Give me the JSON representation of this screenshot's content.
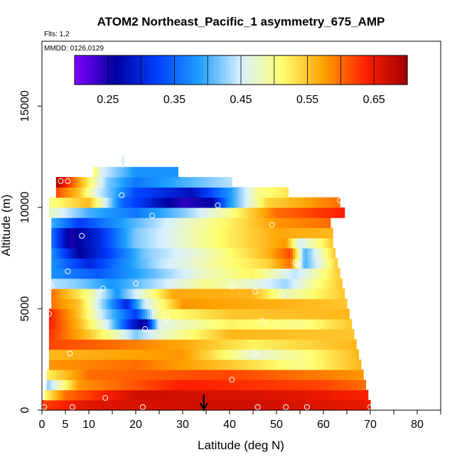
{
  "chart_data": {
    "type": "heatmap",
    "title": "ATOM2 Northeast_Pacific_1 asymmetry_675_AMP",
    "flights_label": "Flts: 1,2",
    "dates_label": "MMDD: 0126,0129",
    "xlabel": "Latitude (deg N)",
    "ylabel": "Altitude (m)",
    "xlim": [
      0,
      85
    ],
    "ylim": [
      0,
      18200
    ],
    "x_ticks": [
      0,
      5,
      10,
      20,
      30,
      40,
      50,
      60,
      70,
      80
    ],
    "y_ticks": [
      0,
      5000,
      10000,
      15000
    ],
    "colorbar": {
      "range": [
        0.2,
        0.7
      ],
      "ticks": [
        0.25,
        0.35,
        0.45,
        0.55,
        0.65
      ],
      "colors": [
        "#7f00ff",
        "#0000a0",
        "#0040ff",
        "#1ea0ff",
        "#d8f0ff",
        "#ffff70",
        "#ffa000",
        "#ff2000",
        "#a00000"
      ]
    },
    "arrow_latitude": 34.5,
    "altitude_layers": [
      {
        "y0": 0,
        "y1": 500,
        "lat0": 0,
        "lat1": 70,
        "knots": [
          [
            0,
            0.62
          ],
          [
            10,
            0.66
          ],
          [
            40,
            0.67
          ],
          [
            60,
            0.66
          ],
          [
            70,
            0.65
          ]
        ]
      },
      {
        "y0": 500,
        "y1": 1000,
        "lat0": 0.5,
        "lat1": 69.5,
        "knots": [
          [
            0,
            0.5
          ],
          [
            5,
            0.6
          ],
          [
            20,
            0.67
          ],
          [
            50,
            0.66
          ],
          [
            69.5,
            0.64
          ]
        ]
      },
      {
        "y0": 1000,
        "y1": 1500,
        "lat0": 1,
        "lat1": 69,
        "knots": [
          [
            1,
            0.42
          ],
          [
            8,
            0.58
          ],
          [
            30,
            0.64
          ],
          [
            60,
            0.62
          ],
          [
            69,
            0.6
          ]
        ]
      },
      {
        "y0": 1500,
        "y1": 2000,
        "lat0": 1,
        "lat1": 68.5,
        "knots": [
          [
            1,
            0.52
          ],
          [
            10,
            0.6
          ],
          [
            40,
            0.62
          ],
          [
            68.5,
            0.58
          ]
        ]
      },
      {
        "y0": 2000,
        "y1": 2500,
        "lat0": 1.5,
        "lat1": 68,
        "knots": [
          [
            1.5,
            0.58
          ],
          [
            20,
            0.6
          ],
          [
            40,
            0.55
          ],
          [
            55,
            0.5
          ],
          [
            68,
            0.56
          ]
        ]
      },
      {
        "y0": 2500,
        "y1": 3000,
        "lat0": 1.5,
        "lat1": 67.5,
        "knots": [
          [
            1.5,
            0.56
          ],
          [
            30,
            0.58
          ],
          [
            45,
            0.47
          ],
          [
            55,
            0.5
          ],
          [
            67.5,
            0.56
          ]
        ]
      },
      {
        "y0": 3000,
        "y1": 3500,
        "lat0": 1.5,
        "lat1": 67,
        "knots": [
          [
            1.5,
            0.62
          ],
          [
            15,
            0.6
          ],
          [
            30,
            0.57
          ],
          [
            45,
            0.52
          ],
          [
            67,
            0.56
          ]
        ]
      },
      {
        "y0": 3500,
        "y1": 4000,
        "lat0": 1.5,
        "lat1": 66.5,
        "knots": [
          [
            1.5,
            0.63
          ],
          [
            10,
            0.55
          ],
          [
            16,
            0.48
          ],
          [
            20,
            0.42
          ],
          [
            25,
            0.47
          ],
          [
            40,
            0.56
          ],
          [
            66.5,
            0.55
          ]
        ]
      },
      {
        "y0": 4000,
        "y1": 4500,
        "lat0": 1.5,
        "lat1": 66,
        "knots": [
          [
            1.5,
            0.64
          ],
          [
            8,
            0.56
          ],
          [
            14,
            0.45
          ],
          [
            19,
            0.3
          ],
          [
            22,
            0.25
          ],
          [
            25,
            0.46
          ],
          [
            40,
            0.52
          ],
          [
            55,
            0.5
          ],
          [
            66,
            0.55
          ]
        ]
      },
      {
        "y0": 4500,
        "y1": 5000,
        "lat0": 1.5,
        "lat1": 65.5,
        "knots": [
          [
            1.5,
            0.64
          ],
          [
            8,
            0.55
          ],
          [
            14,
            0.42
          ],
          [
            20,
            0.32
          ],
          [
            25,
            0.5
          ],
          [
            40,
            0.55
          ],
          [
            66,
            0.56
          ]
        ]
      },
      {
        "y0": 5000,
        "y1": 5500,
        "lat0": 2,
        "lat1": 65,
        "knots": [
          [
            2,
            0.6
          ],
          [
            8,
            0.55
          ],
          [
            14,
            0.4
          ],
          [
            18,
            0.3
          ],
          [
            22,
            0.45
          ],
          [
            30,
            0.58
          ],
          [
            55,
            0.56
          ],
          [
            65,
            0.55
          ]
        ]
      },
      {
        "y0": 5500,
        "y1": 6000,
        "lat0": 2,
        "lat1": 64.5,
        "knots": [
          [
            2,
            0.6
          ],
          [
            10,
            0.5
          ],
          [
            16,
            0.38
          ],
          [
            20,
            0.45
          ],
          [
            28,
            0.57
          ],
          [
            45,
            0.56
          ],
          [
            52,
            0.48
          ],
          [
            64.5,
            0.55
          ]
        ]
      },
      {
        "y0": 6000,
        "y1": 6500,
        "lat0": 2,
        "lat1": 64,
        "knots": [
          [
            2,
            0.44
          ],
          [
            8,
            0.42
          ],
          [
            15,
            0.38
          ],
          [
            25,
            0.44
          ],
          [
            35,
            0.5
          ],
          [
            45,
            0.47
          ],
          [
            52,
            0.43
          ],
          [
            58,
            0.5
          ],
          [
            64,
            0.55
          ]
        ]
      },
      {
        "y0": 6500,
        "y1": 7000,
        "lat0": 2,
        "lat1": 63.5,
        "knots": [
          [
            2,
            0.38
          ],
          [
            12,
            0.34
          ],
          [
            22,
            0.4
          ],
          [
            35,
            0.48
          ],
          [
            45,
            0.52
          ],
          [
            54,
            0.44
          ],
          [
            58,
            0.48
          ],
          [
            63.5,
            0.55
          ]
        ]
      },
      {
        "y0": 7000,
        "y1": 7500,
        "lat0": 2,
        "lat1": 63,
        "knots": [
          [
            2,
            0.38
          ],
          [
            10,
            0.3
          ],
          [
            16,
            0.36
          ],
          [
            25,
            0.44
          ],
          [
            38,
            0.5
          ],
          [
            48,
            0.54
          ],
          [
            53,
            0.6
          ],
          [
            56,
            0.4
          ],
          [
            60,
            0.48
          ],
          [
            63,
            0.55
          ]
        ]
      },
      {
        "y0": 7500,
        "y1": 8000,
        "lat0": 2,
        "lat1": 62.5,
        "knots": [
          [
            2,
            0.38
          ],
          [
            8,
            0.26
          ],
          [
            14,
            0.32
          ],
          [
            22,
            0.42
          ],
          [
            35,
            0.48
          ],
          [
            48,
            0.56
          ],
          [
            53,
            0.62
          ],
          [
            56,
            0.4
          ],
          [
            62.5,
            0.55
          ]
        ]
      },
      {
        "y0": 8000,
        "y1": 8500,
        "lat0": 2,
        "lat1": 62,
        "knots": [
          [
            2,
            0.36
          ],
          [
            6,
            0.25
          ],
          [
            12,
            0.3
          ],
          [
            20,
            0.42
          ],
          [
            35,
            0.5
          ],
          [
            52,
            0.58
          ],
          [
            55,
            0.45
          ],
          [
            62,
            0.55
          ]
        ]
      },
      {
        "y0": 8500,
        "y1": 9000,
        "lat0": 2,
        "lat1": 62,
        "knots": [
          [
            2,
            0.36
          ],
          [
            6,
            0.25
          ],
          [
            12,
            0.3
          ],
          [
            20,
            0.42
          ],
          [
            35,
            0.5
          ],
          [
            50,
            0.57
          ],
          [
            62,
            0.56
          ]
        ]
      },
      {
        "y0": 9000,
        "y1": 9500,
        "lat0": 2,
        "lat1": 61.5,
        "knots": [
          [
            2,
            0.4
          ],
          [
            8,
            0.32
          ],
          [
            16,
            0.38
          ],
          [
            28,
            0.46
          ],
          [
            40,
            0.52
          ],
          [
            50,
            0.58
          ],
          [
            61.5,
            0.6
          ]
        ]
      },
      {
        "y0": 9500,
        "y1": 10000,
        "lat0": 1.5,
        "lat1": 64.5,
        "knots": [
          [
            1.5,
            0.48
          ],
          [
            10,
            0.4
          ],
          [
            20,
            0.36
          ],
          [
            30,
            0.42
          ],
          [
            40,
            0.5
          ],
          [
            50,
            0.6
          ],
          [
            64.5,
            0.64
          ]
        ]
      },
      {
        "y0": 10000,
        "y1": 10500,
        "lat0": 1.5,
        "lat1": 63.5,
        "knots": [
          [
            1.5,
            0.5
          ],
          [
            10,
            0.56
          ],
          [
            17,
            0.35
          ],
          [
            25,
            0.28
          ],
          [
            30,
            0.24
          ],
          [
            36,
            0.26
          ],
          [
            40,
            0.38
          ],
          [
            48,
            0.54
          ],
          [
            63.5,
            0.6
          ]
        ]
      },
      {
        "y0": 10500,
        "y1": 11000,
        "lat0": 3,
        "lat1": 52.5,
        "knots": [
          [
            3,
            0.62
          ],
          [
            8,
            0.55
          ],
          [
            12,
            0.45
          ],
          [
            20,
            0.33
          ],
          [
            32,
            0.28
          ],
          [
            40,
            0.38
          ],
          [
            46,
            0.5
          ],
          [
            52.5,
            0.53
          ]
        ]
      },
      {
        "y0": 11000,
        "y1": 11500,
        "lat0": 3,
        "lat1": 40.5,
        "knots": [
          [
            3,
            0.7
          ],
          [
            6,
            0.62
          ],
          [
            10,
            0.52
          ],
          [
            14,
            0.42
          ],
          [
            20,
            0.36
          ],
          [
            30,
            0.4
          ],
          [
            40.5,
            0.44
          ]
        ]
      },
      {
        "y0": 11500,
        "y1": 12000,
        "lat0": 11,
        "lat1": 29,
        "knots": [
          [
            11,
            0.52
          ],
          [
            13,
            0.45
          ],
          [
            16,
            0.42
          ],
          [
            20,
            0.38
          ],
          [
            29,
            0.38
          ]
        ]
      },
      {
        "y0": 12000,
        "y1": 12500,
        "lat0": 17,
        "lat1": 17.5,
        "knots": [
          [
            17,
            0.45
          ],
          [
            17.5,
            0.45
          ]
        ]
      }
    ],
    "sample_points": [
      {
        "lat": 0.5,
        "alt": 150
      },
      {
        "lat": 6.5,
        "alt": 150
      },
      {
        "lat": 21.5,
        "alt": 150
      },
      {
        "lat": 46,
        "alt": 150
      },
      {
        "lat": 52,
        "alt": 150
      },
      {
        "lat": 56.5,
        "alt": 150
      },
      {
        "lat": 70,
        "alt": 150
      },
      {
        "lat": 13.5,
        "alt": 600
      },
      {
        "lat": 40.5,
        "alt": 1500
      },
      {
        "lat": 0.5,
        "alt": 1400
      },
      {
        "lat": 6,
        "alt": 2800
      },
      {
        "lat": 45.5,
        "alt": 2800
      },
      {
        "lat": 22,
        "alt": 4000
      },
      {
        "lat": 47,
        "alt": 4400
      },
      {
        "lat": 1.5,
        "alt": 4750
      },
      {
        "lat": 26.5,
        "alt": 4500
      },
      {
        "lat": 2,
        "alt": 6100
      },
      {
        "lat": 13,
        "alt": 6000
      },
      {
        "lat": 20,
        "alt": 6250
      },
      {
        "lat": 40.5,
        "alt": 6100
      },
      {
        "lat": 45.5,
        "alt": 5850
      },
      {
        "lat": 51,
        "alt": 5700
      },
      {
        "lat": 5.5,
        "alt": 6850
      },
      {
        "lat": 54,
        "alt": 7250
      },
      {
        "lat": 54.5,
        "alt": 7200
      },
      {
        "lat": 8.5,
        "alt": 8600
      },
      {
        "lat": 49,
        "alt": 9150
      },
      {
        "lat": 23.5,
        "alt": 9600
      },
      {
        "lat": 37.5,
        "alt": 10100
      },
      {
        "lat": 17,
        "alt": 10600
      },
      {
        "lat": 1,
        "alt": 10300
      },
      {
        "lat": 4,
        "alt": 11300
      },
      {
        "lat": 5.5,
        "alt": 11300
      },
      {
        "lat": 63.5,
        "alt": 10350
      }
    ]
  }
}
